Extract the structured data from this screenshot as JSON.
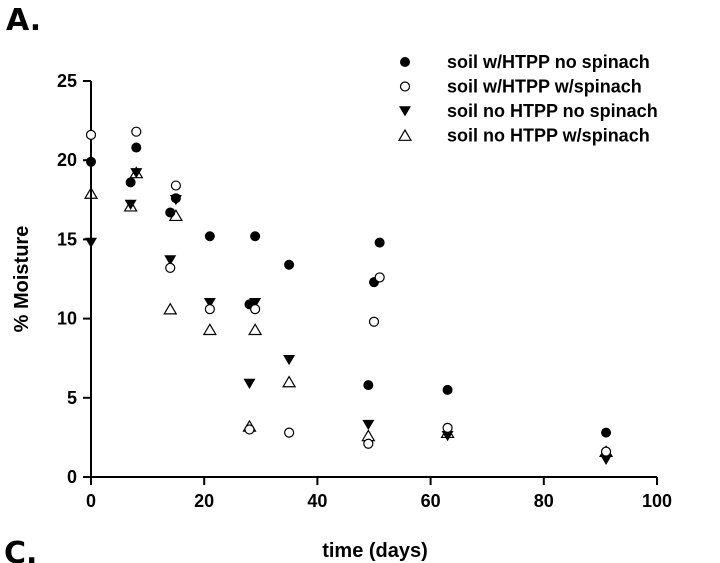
{
  "panel_labels": {
    "top": "A.",
    "bottom": "C."
  },
  "chart_data": {
    "type": "scatter",
    "xlabel": "time (days)",
    "ylabel": "% Moisture",
    "xlim": [
      0,
      100
    ],
    "ylim": [
      0,
      25
    ],
    "xticks": [
      "0",
      "20",
      "40",
      "60",
      "80",
      "100"
    ],
    "yticks": [
      "0",
      "5",
      "10",
      "15",
      "20",
      "25"
    ],
    "grid": false,
    "legend_position": "top-right",
    "series": [
      {
        "name": "soil w/HTPP no spinach",
        "marker": "filled-circle",
        "x": [
          0,
          7,
          8,
          14,
          15,
          21,
          28,
          29,
          35,
          49,
          50,
          51,
          63,
          91
        ],
        "y": [
          19.9,
          18.6,
          20.8,
          16.7,
          17.6,
          15.2,
          10.9,
          15.2,
          13.4,
          5.8,
          12.3,
          14.8,
          5.5,
          2.8
        ]
      },
      {
        "name": "soil w/HTPP w/spinach",
        "marker": "open-circle",
        "x": [
          0,
          8,
          14,
          15,
          21,
          28,
          29,
          35,
          49,
          50,
          51,
          63,
          91
        ],
        "y": [
          21.6,
          21.8,
          13.2,
          18.4,
          10.6,
          3.0,
          10.6,
          2.8,
          2.1,
          9.8,
          12.6,
          3.1,
          1.6
        ]
      },
      {
        "name": "soil no HTPP no spinach",
        "marker": "filled-triangle-down",
        "x": [
          0,
          7,
          8,
          14,
          15,
          21,
          28,
          29,
          35,
          49,
          63,
          91
        ],
        "y": [
          14.8,
          17.2,
          19.2,
          13.7,
          17.5,
          11.0,
          5.9,
          11.0,
          7.4,
          3.3,
          2.6,
          1.1
        ]
      },
      {
        "name": "soil no HTPP w/spinach",
        "marker": "open-triangle-up",
        "x": [
          0,
          7,
          8,
          14,
          15,
          21,
          28,
          29,
          35,
          49,
          63,
          91
        ],
        "y": [
          17.9,
          17.1,
          19.2,
          10.6,
          16.5,
          9.3,
          3.2,
          9.3,
          6.0,
          2.6,
          2.8,
          1.6
        ]
      }
    ]
  }
}
